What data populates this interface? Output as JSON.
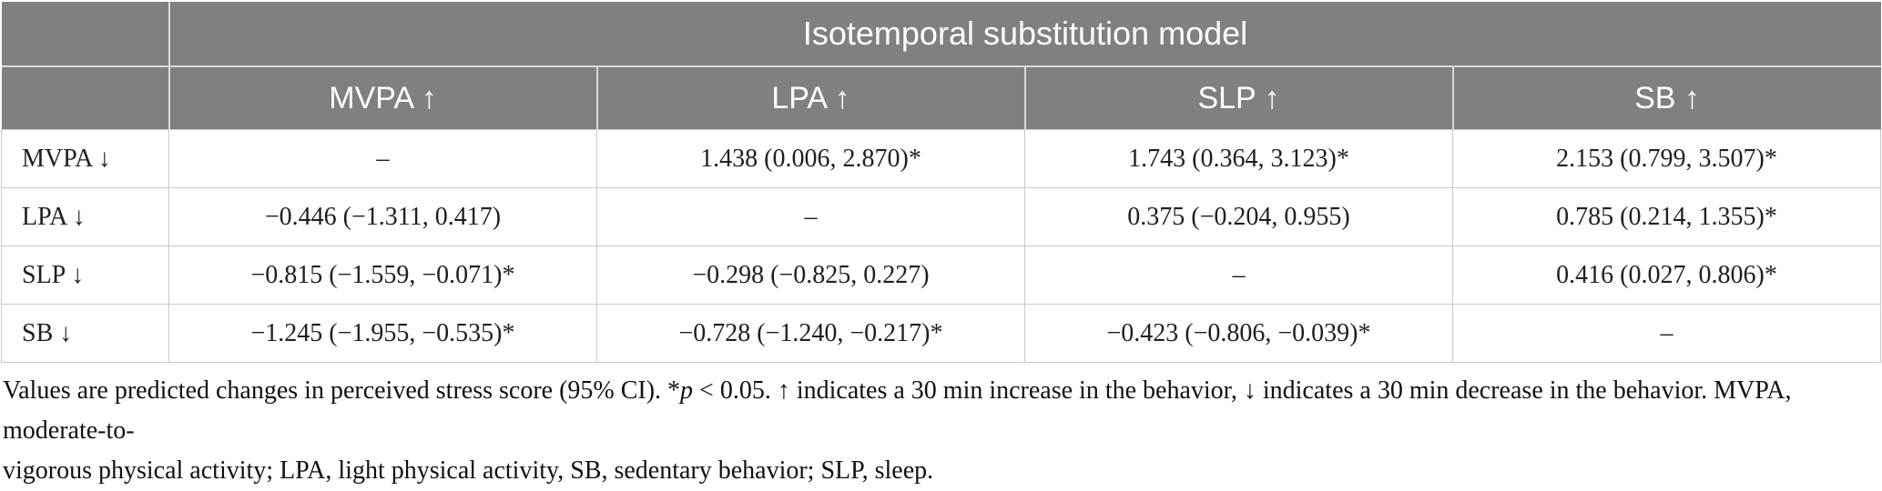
{
  "table": {
    "title": "Isotemporal substitution model",
    "corner_label": "",
    "columns": [
      "MVPA ↑",
      "LPA ↑",
      "SLP ↑",
      "SB ↑"
    ],
    "rows": [
      {
        "label": "MVPA ↓",
        "cells": [
          "–",
          "1.438 (0.006, 2.870)*",
          "1.743 (0.364, 3.123)*",
          "2.153 (0.799, 3.507)*"
        ]
      },
      {
        "label": "LPA ↓",
        "cells": [
          "−0.446 (−1.311, 0.417)",
          "–",
          "0.375 (−0.204, 0.955)",
          "0.785 (0.214, 1.355)*"
        ]
      },
      {
        "label": "SLP ↓",
        "cells": [
          "−0.815 (−1.559, −0.071)*",
          "−0.298 (−0.825, 0.227)",
          "–",
          "0.416 (0.027, 0.806)*"
        ]
      },
      {
        "label": "SB ↓",
        "cells": [
          "−1.245 (−1.955, −0.535)*",
          "−0.728 (−1.240, −0.217)*",
          "−0.423 (−0.806, −0.039)*",
          "–"
        ]
      }
    ]
  },
  "footnote": {
    "line1_part1": "Values are predicted changes in perceived stress score (95% CI). *",
    "line1_italic": "p",
    "line1_part2": " < 0.05. ↑ indicates a 30 min increase in the behavior, ↓ indicates a 30 min decrease in the behavior. MVPA, moderate-to-",
    "line2": "vigorous physical activity; LPA, light physical activity, SB, sedentary behavior; SLP, sleep."
  },
  "colors": {
    "header_bg": "#808080",
    "header_divider": "#d9dbdb",
    "header_text": "#ffffff",
    "body_border": "#c9c9c9",
    "body_text": "#1f1f1f"
  }
}
